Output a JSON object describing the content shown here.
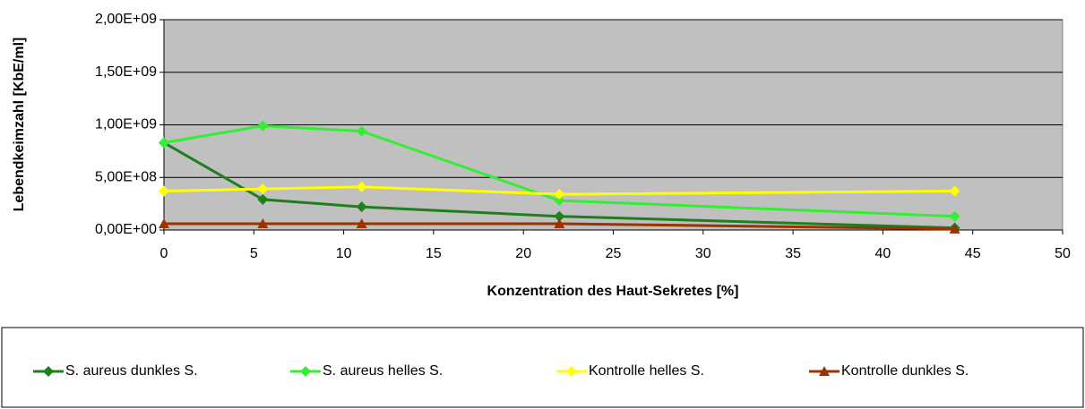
{
  "chart_data": {
    "type": "line",
    "x_label": "Konzentration des Haut-Sekretes [%]",
    "y_label": "Lebendkeimzahl [KbE/ml]",
    "x": [
      0,
      5.5,
      11,
      22,
      44
    ],
    "series": [
      {
        "name": "S. aureus dunkles S.",
        "color": "#1f7f1f",
        "marker": "diamond",
        "values": [
          830000000,
          290000000,
          220000000,
          130000000,
          20000000
        ]
      },
      {
        "name": "S. aureus helles S.",
        "color": "#33ee33",
        "marker": "diamond",
        "values": [
          830000000,
          990000000,
          940000000,
          280000000,
          130000000
        ]
      },
      {
        "name": "Kontrolle helles S.",
        "color": "#ffff00",
        "marker": "diamond",
        "values": [
          370000000,
          390000000,
          410000000,
          340000000,
          370000000
        ]
      },
      {
        "name": "Kontrolle dunkles S.",
        "color": "#993300",
        "marker": "triangle",
        "values": [
          60000000,
          60000000,
          60000000,
          60000000,
          10000000
        ]
      }
    ],
    "xlim": [
      0,
      50
    ],
    "xticks": [
      0,
      5,
      10,
      15,
      20,
      25,
      30,
      35,
      40,
      45,
      50
    ],
    "ylim": [
      0,
      2000000000
    ],
    "yticks": [
      {
        "value": 0,
        "label": "0,00E+00"
      },
      {
        "value": 500000000,
        "label": "5,00E+08"
      },
      {
        "value": 1000000000,
        "label": "1,00E+09"
      },
      {
        "value": 1500000000,
        "label": "1,50E+09"
      },
      {
        "value": 2000000000,
        "label": "2,00E+09"
      }
    ],
    "grid": true,
    "plot_background": "#c0c0c0",
    "legend": "bottom"
  }
}
